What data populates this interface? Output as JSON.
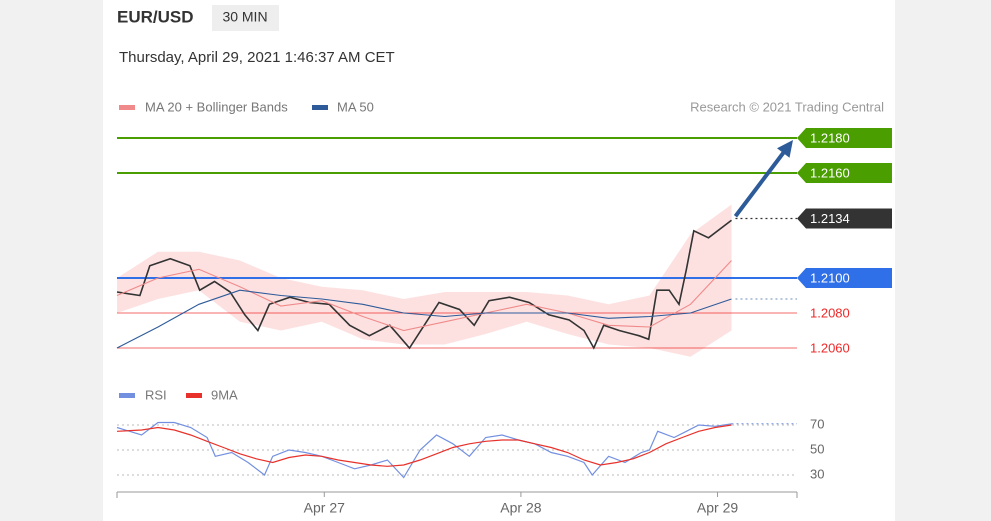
{
  "header": {
    "symbol": "EUR/USD",
    "interval": "30 MIN",
    "timestamp": "Thursday, April 29, 2021 1:46:37 AM CET",
    "credit": "Research © 2021 Trading Central"
  },
  "chart_data": [
    {
      "type": "line",
      "xlim": [
        0,
        83
      ],
      "ylim": [
        1.2047,
        1.2187
      ],
      "xticks": [
        {
          "value": 25.3,
          "label": "Apr 27"
        },
        {
          "value": 49.3,
          "label": "Apr 28"
        },
        {
          "value": 73.3,
          "label": "Apr 29"
        }
      ],
      "series": [
        {
          "color": "#333333",
          "x": [
            0,
            2.8,
            4,
            6.5,
            8.9,
            10.1,
            11.9,
            13.8,
            15.6,
            17.2,
            18.6,
            21.1,
            23.5,
            25.9,
            28.4,
            30.8,
            33.3,
            35.7,
            37.5,
            39.3,
            41.8,
            43.6,
            45.4,
            47.9,
            50.3,
            52.7,
            55.2,
            57,
            58.2,
            59.4,
            61.3,
            63.7,
            64.9,
            65.9,
            67.4,
            68.6,
            69.5,
            70.4,
            72.2,
            75
          ],
          "values": [
            1.2092,
            1.209,
            1.2107,
            1.2111,
            1.2107,
            1.2093,
            1.2098,
            1.2092,
            1.2079,
            1.207,
            1.2085,
            1.2089,
            1.2086,
            1.2085,
            1.2073,
            1.2067,
            1.2073,
            1.206,
            1.2073,
            1.2086,
            1.2082,
            1.2073,
            1.2087,
            1.2089,
            1.2086,
            1.2079,
            1.2076,
            1.207,
            1.206,
            1.2073,
            1.207,
            1.2067,
            1.2065,
            1.2093,
            1.2093,
            1.2085,
            1.2105,
            1.2127,
            1.2123,
            1.2133
          ]
        },
        {
          "name": "MA 20 + Bollinger Bands",
          "color": "#f08a8a",
          "band_color": "#fddcdc",
          "x": [
            0,
            5,
            10,
            15,
            20,
            25,
            30,
            35,
            40,
            45,
            50,
            55,
            60,
            65,
            70,
            75
          ],
          "values": [
            1.209,
            1.21,
            1.2105,
            1.2095,
            1.2084,
            1.2087,
            1.2078,
            1.207,
            1.2075,
            1.208,
            1.2085,
            1.208,
            1.2073,
            1.2072,
            1.2085,
            1.211
          ],
          "upper": [
            1.21,
            1.2115,
            1.2115,
            1.211,
            1.21,
            1.2095,
            1.2093,
            1.2088,
            1.2092,
            1.2092,
            1.2092,
            1.209,
            1.2085,
            1.209,
            1.2125,
            1.2142
          ],
          "lower": [
            1.208,
            1.2088,
            1.2093,
            1.2075,
            1.207,
            1.2075,
            1.2065,
            1.2062,
            1.2062,
            1.2068,
            1.2075,
            1.2068,
            1.2062,
            1.206,
            1.2055,
            1.207
          ]
        },
        {
          "name": "MA 50",
          "color": "#2d5b9a",
          "x": [
            0,
            5,
            10,
            15,
            20,
            25,
            30,
            35,
            40,
            45,
            50,
            55,
            60,
            65,
            70,
            75
          ],
          "values": [
            1.206,
            1.2072,
            1.2085,
            1.2093,
            1.209,
            1.2088,
            1.2085,
            1.208,
            1.2078,
            1.208,
            1.208,
            1.208,
            1.2077,
            1.2078,
            1.208,
            1.2088
          ]
        }
      ],
      "levels": [
        {
          "value": 1.218,
          "label": "1.2180",
          "color": "#4a9e00",
          "kind": "tag",
          "line": "solid"
        },
        {
          "value": 1.216,
          "label": "1.2160",
          "color": "#4a9e00",
          "kind": "tag",
          "line": "solid"
        },
        {
          "value": 1.2134,
          "label": "1.2134",
          "color": "#333333",
          "kind": "tag",
          "line": "dotted"
        },
        {
          "value": 1.21,
          "label": "1.2100",
          "color": "#2f6fe8",
          "kind": "tag",
          "line": "solid"
        },
        {
          "value": 1.208,
          "label": "1.2080",
          "color": "#ee2a2a",
          "kind": "text",
          "line": "solid"
        },
        {
          "value": 1.206,
          "label": "1.2060",
          "color": "#ee2a2a",
          "kind": "text",
          "line": "solid"
        }
      ]
    },
    {
      "type": "line",
      "xlim": [
        0,
        83
      ],
      "ylim": [
        22,
        78
      ],
      "yticks": [
        30,
        50,
        70
      ],
      "grid": true,
      "series": [
        {
          "name": "RSI",
          "color": "#7390e0",
          "x": [
            0,
            3,
            5,
            7,
            9,
            11,
            12,
            14,
            16,
            18,
            19,
            21,
            23,
            25,
            27,
            29,
            31,
            33,
            35,
            37,
            39,
            41,
            43,
            45,
            47,
            49,
            51,
            53,
            55,
            57,
            58,
            60,
            62,
            64,
            65,
            66,
            68,
            69.5,
            71,
            73,
            75
          ],
          "values": [
            68,
            62,
            72,
            72,
            68,
            60,
            45,
            48,
            40,
            30,
            45,
            50,
            48,
            45,
            40,
            35,
            38,
            42,
            28,
            50,
            62,
            55,
            45,
            60,
            62,
            58,
            55,
            48,
            45,
            40,
            30,
            45,
            40,
            48,
            50,
            65,
            60,
            65,
            70,
            69,
            71
          ]
        },
        {
          "name": "9MA",
          "color": "#e8312a",
          "x": [
            0,
            3,
            5,
            7,
            9,
            11,
            13,
            15,
            17,
            19,
            21,
            23,
            25,
            27,
            29,
            31,
            33,
            35,
            37,
            39,
            41,
            43,
            45,
            47,
            49,
            51,
            53,
            55,
            57,
            59,
            61,
            63,
            65,
            67,
            69,
            71,
            73,
            75
          ],
          "values": [
            65,
            66,
            68,
            66,
            62,
            57,
            52,
            47,
            43,
            40,
            44,
            46,
            45,
            42,
            40,
            38,
            37,
            38,
            42,
            47,
            52,
            55,
            57,
            58,
            58,
            55,
            52,
            48,
            42,
            38,
            40,
            43,
            48,
            55,
            60,
            65,
            68,
            70
          ]
        }
      ]
    }
  ]
}
